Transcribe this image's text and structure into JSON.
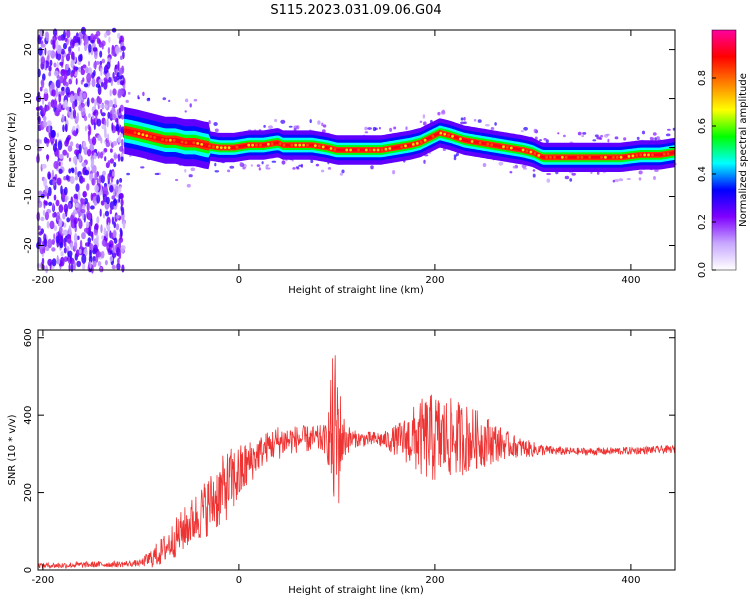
{
  "title": "S115.2023.031.09.06.G04",
  "chart_data": [
    {
      "type": "heatmap",
      "xlabel": "Height of straight line (km)",
      "ylabel": "Frequency (Hz)",
      "xlim": [
        -205,
        445
      ],
      "ylim": [
        -25,
        24
      ],
      "xticks": [
        -200,
        0,
        200,
        400
      ],
      "yticks": [
        -20,
        -10,
        0,
        10,
        20
      ],
      "colorbar": {
        "label": "Normalized spectral amplitude",
        "range": [
          0,
          1
        ],
        "ticks": [
          "0.0",
          "0.2",
          "0.4",
          "0.6",
          "0.8"
        ],
        "tick_values": [
          0,
          0.2,
          0.4,
          0.6,
          0.8
        ],
        "colors": [
          "#ffffff",
          "#c8a8ff",
          "#7f00ff",
          "#0000ff",
          "#00ffff",
          "#00ff00",
          "#ffff00",
          "#ff8000",
          "#ff0000",
          "#ff00a0"
        ]
      },
      "noise_region_x": [
        -205,
        -117
      ],
      "ridge": {
        "x": [
          -117,
          -105,
          -95,
          -85,
          -75,
          -65,
          -55,
          -45,
          -35,
          -20,
          -5,
          10,
          25,
          40,
          45,
          60,
          75,
          90,
          100,
          115,
          130,
          145,
          160,
          175,
          185,
          195,
          205,
          215,
          230,
          245,
          260,
          275,
          290,
          300,
          310,
          330,
          360,
          390,
          410,
          430,
          445
        ],
        "frequency": [
          3.5,
          3,
          2.5,
          2,
          1.5,
          1.5,
          1,
          1,
          0.5,
          0,
          0,
          0.5,
          0.5,
          1,
          0.5,
          0.5,
          0.5,
          0,
          -0.5,
          -0.5,
          -0.5,
          -0.5,
          0,
          0.5,
          1,
          2,
          3,
          2.5,
          1.5,
          1,
          0.5,
          0,
          -0.5,
          -1,
          -2,
          -2,
          -2,
          -2,
          -1.5,
          -1.5,
          -1
        ]
      }
    },
    {
      "type": "line",
      "xlabel": "Height of straight line (km)",
      "ylabel": "SNR (10 * v/v)",
      "xlim": [
        -205,
        445
      ],
      "ylim": [
        0,
        620
      ],
      "xticks": [
        -200,
        0,
        200,
        400
      ],
      "yticks": [
        0,
        200,
        400,
        600
      ],
      "color": "#ee3333",
      "x": [
        -205,
        -180,
        -150,
        -120,
        -100,
        -90,
        -80,
        -70,
        -60,
        -50,
        -40,
        -30,
        -20,
        -10,
        0,
        10,
        20,
        30,
        40,
        50,
        60,
        70,
        80,
        90,
        95,
        100,
        105,
        110,
        120,
        140,
        150,
        160,
        170,
        180,
        190,
        200,
        210,
        220,
        230,
        240,
        250,
        260,
        270,
        280,
        290,
        300,
        310,
        320,
        340,
        360,
        380,
        400,
        420,
        445
      ],
      "mean": [
        12,
        12,
        14,
        15,
        18,
        30,
        45,
        70,
        95,
        120,
        145,
        170,
        195,
        225,
        245,
        275,
        300,
        320,
        330,
        335,
        338,
        338,
        338,
        338,
        345,
        345,
        340,
        338,
        338,
        338,
        335,
        335,
        337,
        340,
        340,
        340,
        340,
        340,
        340,
        338,
        335,
        330,
        325,
        320,
        315,
        312,
        310,
        308,
        306,
        306,
        307,
        308,
        310,
        312
      ],
      "amp": [
        6,
        8,
        8,
        8,
        8,
        25,
        35,
        45,
        55,
        60,
        70,
        80,
        90,
        90,
        80,
        60,
        45,
        40,
        45,
        40,
        35,
        35,
        35,
        40,
        200,
        250,
        80,
        40,
        20,
        20,
        25,
        40,
        60,
        90,
        110,
        120,
        110,
        100,
        95,
        80,
        70,
        55,
        40,
        30,
        25,
        20,
        15,
        12,
        10,
        10,
        10,
        10,
        10,
        10
      ]
    }
  ]
}
